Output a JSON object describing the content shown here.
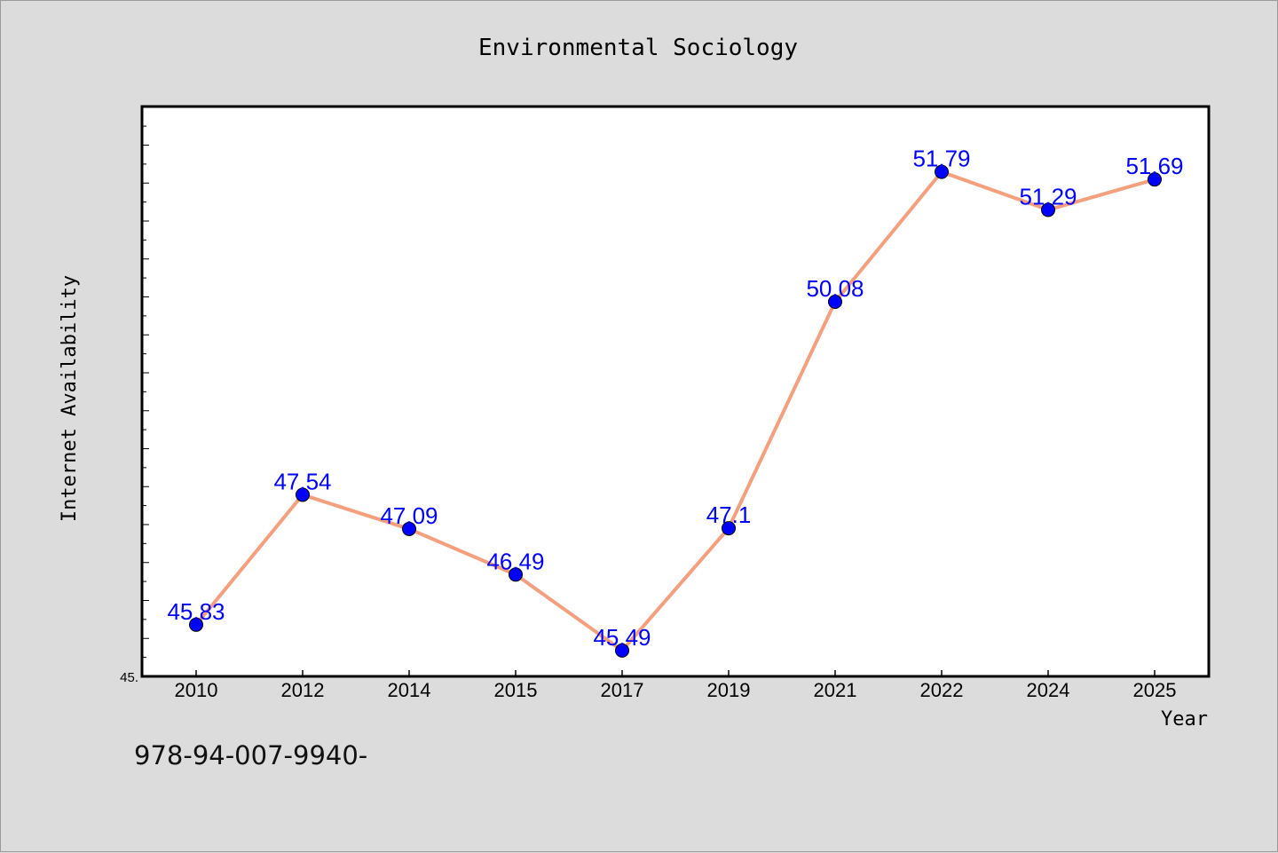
{
  "chart_data": {
    "type": "line",
    "title": "Environmental Sociology",
    "xlabel": "Year",
    "ylabel": "Internet Availability",
    "categories": [
      "2010",
      "2012",
      "2014",
      "2015",
      "2017",
      "2019",
      "2021",
      "2022",
      "2024",
      "2025"
    ],
    "series": [
      {
        "values": [
          45.83,
          47.54,
          47.09,
          46.49,
          45.49,
          47.1,
          50.08,
          51.79,
          51.29,
          51.69
        ],
        "labels": [
          "45.83",
          "47.54",
          "47.09",
          "46.49",
          "45.49",
          "47.1",
          "50.08",
          "51.79",
          "51.29",
          "51.69"
        ]
      }
    ],
    "ylim": [
      45.15,
      52.65
    ],
    "y_tick_label": "45.",
    "grid": false,
    "colors": {
      "line": "#f4a07e",
      "marker": "#0000ff",
      "label": "#0000ff",
      "plot_bg": "#ffffff",
      "page_bg": "#dcdcdc"
    }
  },
  "footer": {
    "isbn": "978-94-007-9940-"
  }
}
